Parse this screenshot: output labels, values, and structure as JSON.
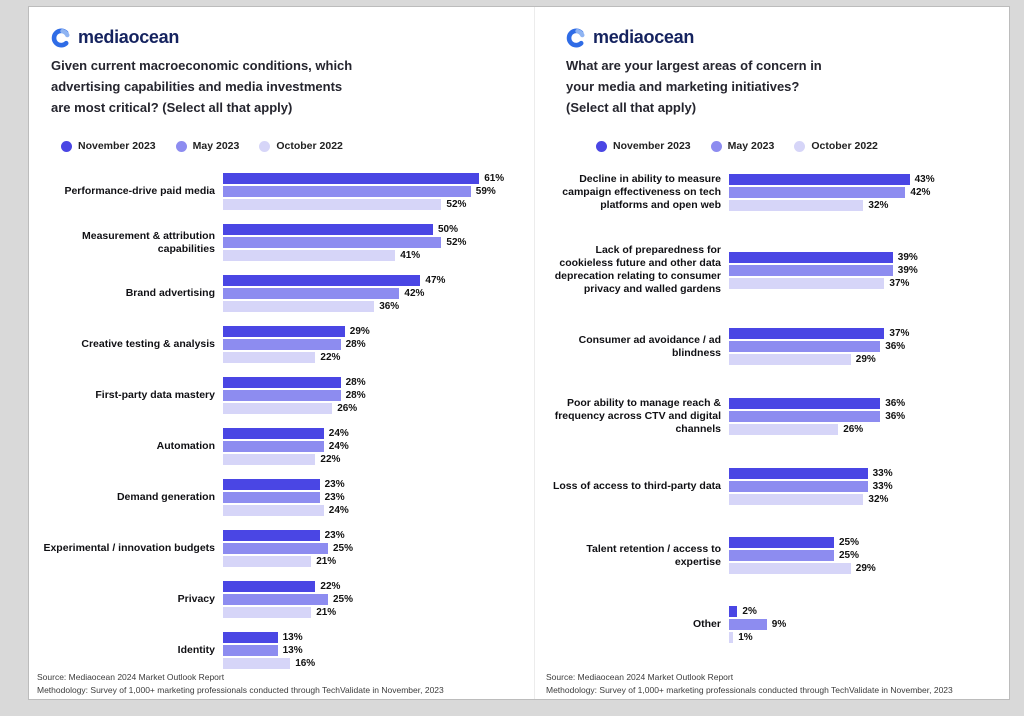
{
  "brand": {
    "name": "mediaocean",
    "wordmark_color": "#15235f",
    "icon_color": "#2f6ce6",
    "icon_accent_color": "#8fb4f2"
  },
  "legend": [
    {
      "label": "November 2023",
      "color": "#4a46e4"
    },
    {
      "label": "May 2023",
      "color": "#8d8cf0"
    },
    {
      "label": "October 2022",
      "color": "#d6d5f8"
    }
  ],
  "footer": {
    "source": "Source: Mediaocean 2024 Market Outlook Report",
    "methodology": "Methodology: Survey of 1,000+ marketing professionals conducted through TechValidate in November, 2023"
  },
  "chart_data": [
    {
      "type": "bar",
      "orientation": "horizontal",
      "title": "Given current macroeconomic conditions, which advertising capabilities and media investments are most critical? (Select all that apply)",
      "title_lines": [
        "Given current macroeconomic conditions, which",
        "advertising capabilities and media investments",
        "are most critical? (Select all that apply)"
      ],
      "legend_position": "top",
      "value_suffix": "%",
      "xlim": [
        0,
        65
      ],
      "categories": [
        "Performance-drive paid media",
        "Measurement & attribution capabilities",
        "Brand advertising",
        "Creative testing & analysis",
        "First-party data mastery",
        "Automation",
        "Demand generation",
        "Experimental / innovation budgets",
        "Privacy",
        "Identity"
      ],
      "series": [
        {
          "name": "November 2023",
          "values": [
            61,
            50,
            47,
            29,
            28,
            24,
            23,
            23,
            22,
            13
          ]
        },
        {
          "name": "May 2023",
          "values": [
            59,
            52,
            42,
            28,
            28,
            24,
            23,
            25,
            25,
            13
          ]
        },
        {
          "name": "October 2022",
          "values": [
            52,
            41,
            36,
            22,
            26,
            22,
            24,
            21,
            21,
            16
          ]
        }
      ]
    },
    {
      "type": "bar",
      "orientation": "horizontal",
      "title": "What are your largest areas of concern in your media and marketing initiatives? (Select all that apply)",
      "title_lines": [
        "What are your largest areas of concern in",
        "your media and marketing initiatives?",
        "(Select all that apply)"
      ],
      "legend_position": "top",
      "value_suffix": "%",
      "xlim": [
        0,
        65
      ],
      "categories": [
        "Decline in ability to measure campaign effectiveness on tech platforms and open web",
        "Lack of preparedness for cookieless future and other data deprecation relating to consumer privacy and walled gardens",
        "Consumer ad avoidance / ad blindness",
        "Poor ability to manage reach & frequency across CTV and digital channels",
        "Loss of access to third-party data",
        "Talent retention / access to expertise",
        "Other"
      ],
      "series": [
        {
          "name": "November 2023",
          "values": [
            43,
            39,
            37,
            36,
            33,
            25,
            2
          ]
        },
        {
          "name": "May 2023",
          "values": [
            42,
            39,
            36,
            36,
            33,
            25,
            9
          ]
        },
        {
          "name": "October 2022",
          "values": [
            32,
            37,
            29,
            26,
            32,
            29,
            1
          ]
        }
      ]
    }
  ]
}
